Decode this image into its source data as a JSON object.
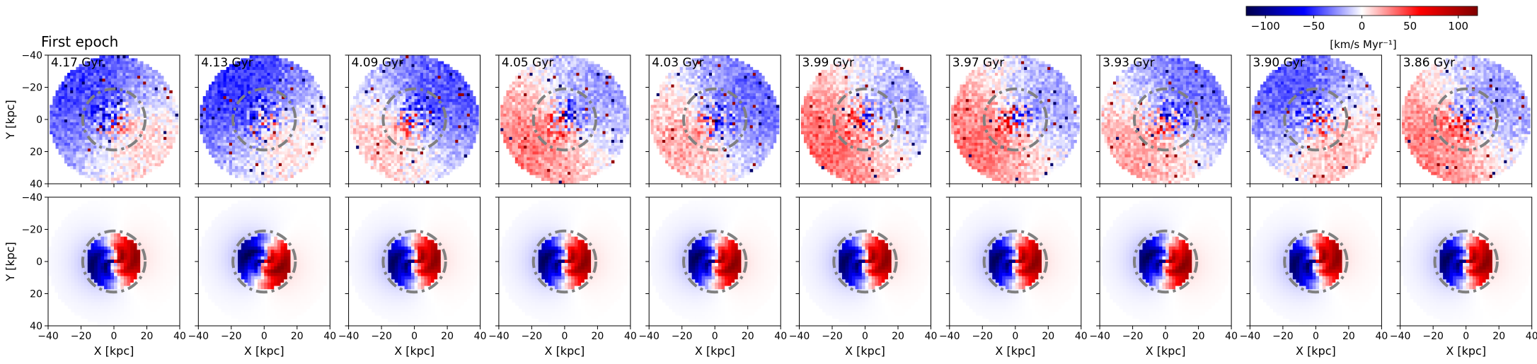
{
  "figure": {
    "title": "First epoch",
    "row_labels": [
      "",
      ""
    ]
  },
  "colorbar": {
    "label": "[km/s Myr⁻¹]",
    "ticks": [
      "−100",
      "−50",
      "0",
      "50",
      "100"
    ],
    "tick_values": [
      -100,
      -50,
      0,
      50,
      100
    ],
    "range": [
      -120,
      120
    ],
    "colors": {
      "low": "#00007f",
      "mid": "#ffffff",
      "high": "#7f0000"
    }
  },
  "chart_data": {
    "type": "heatmap",
    "title": "First epoch",
    "panel_times": [
      "4.17 Gyr",
      "4.13 Gyr",
      "4.09 Gyr",
      "4.05 Gyr",
      "4.03 Gyr",
      "3.99 Gyr",
      "3.97 Gyr",
      "3.93 Gyr",
      "3.90 Gyr",
      "3.86 Gyr"
    ],
    "rows": 2,
    "columns": 10,
    "xlabel": "X [kpc]",
    "ylabel": "Y [kpc]",
    "xlim": [
      -40,
      40
    ],
    "ylim": [
      -40,
      40
    ],
    "x_ticks": [
      "−40",
      "−20",
      "0",
      "20",
      "40"
    ],
    "y_ticks": [
      "40",
      "20",
      "0",
      "−20",
      "−40"
    ],
    "circle_radius_kpc": 19,
    "circle_color": "#808080",
    "circle_style": "dash-dot",
    "colormap": "seismic",
    "color_range": [
      -120,
      120
    ]
  }
}
